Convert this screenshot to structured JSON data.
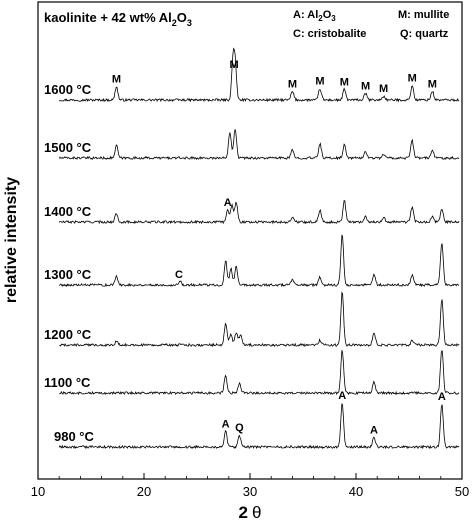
{
  "chart_data": {
    "type": "line",
    "title": "kaolinite + 42 wt% Al",
    "title_sub": "2",
    "title_mid": "O",
    "title_sub2": "3",
    "legend": [
      {
        "text": "A: Al",
        "sub1": "2",
        "mid": "O",
        "sub2": "3"
      },
      {
        "text": "M: mullite"
      },
      {
        "text": "C: cristobalite"
      },
      {
        "text": "Q: quartz"
      }
    ],
    "xlabel_main": "2",
    "xlabel_symbol": "θ",
    "ylabel": "relative intensity",
    "xlim": [
      10,
      50
    ],
    "xticks": [
      "10",
      "20",
      "30",
      "40",
      "50"
    ],
    "series": [
      {
        "name": "1600 °C",
        "peaks": [
          [
            17.4,
            0.28
          ],
          [
            28.4,
            0.78
          ],
          [
            28.6,
            0.68
          ],
          [
            34.0,
            0.18
          ],
          [
            36.6,
            0.24
          ],
          [
            38.9,
            0.22
          ],
          [
            40.9,
            0.14
          ],
          [
            42.6,
            0.08
          ],
          [
            45.3,
            0.3
          ],
          [
            47.2,
            0.18
          ]
        ],
        "labels": [
          {
            "text": "M",
            "x": 17.4
          },
          {
            "text": "M",
            "x": 28.5
          },
          {
            "text": "M",
            "x": 34.0
          },
          {
            "text": "M",
            "x": 36.6
          },
          {
            "text": "M",
            "x": 38.9
          },
          {
            "text": "M",
            "x": 40.9
          },
          {
            "text": "M",
            "x": 42.6
          },
          {
            "text": "M",
            "x": 45.3
          },
          {
            "text": "M",
            "x": 47.2
          }
        ]
      },
      {
        "name": "1500 °C",
        "peaks": [
          [
            17.4,
            0.26
          ],
          [
            28.1,
            0.55
          ],
          [
            28.6,
            0.62
          ],
          [
            34.0,
            0.16
          ],
          [
            36.6,
            0.3
          ],
          [
            38.9,
            0.28
          ],
          [
            40.9,
            0.14
          ],
          [
            42.6,
            0.08
          ],
          [
            45.3,
            0.36
          ],
          [
            47.2,
            0.16
          ]
        ],
        "labels": []
      },
      {
        "name": "1400 °C",
        "peaks": [
          [
            17.4,
            0.18
          ],
          [
            27.9,
            0.25
          ],
          [
            28.3,
            0.35
          ],
          [
            28.7,
            0.42
          ],
          [
            34.0,
            0.1
          ],
          [
            36.6,
            0.26
          ],
          [
            38.9,
            0.45
          ],
          [
            40.9,
            0.12
          ],
          [
            42.6,
            0.1
          ],
          [
            45.3,
            0.32
          ],
          [
            47.2,
            0.1
          ],
          [
            48.1,
            0.28
          ]
        ],
        "labels": [
          {
            "text": "A",
            "x": 27.9
          }
        ]
      },
      {
        "name": "1300 °C",
        "peaks": [
          [
            17.4,
            0.18
          ],
          [
            23.4,
            0.08
          ],
          [
            27.7,
            0.5
          ],
          [
            28.2,
            0.35
          ],
          [
            28.7,
            0.38
          ],
          [
            34.0,
            0.1
          ],
          [
            36.6,
            0.16
          ],
          [
            38.7,
            1.05
          ],
          [
            41.7,
            0.22
          ],
          [
            45.3,
            0.2
          ],
          [
            48.1,
            0.88
          ]
        ],
        "labels": [
          {
            "text": "C",
            "x": 23.3
          }
        ]
      },
      {
        "name": "1200 °C",
        "peaks": [
          [
            17.4,
            0.08
          ],
          [
            27.7,
            0.45
          ],
          [
            28.2,
            0.22
          ],
          [
            28.7,
            0.25
          ],
          [
            29.1,
            0.2
          ],
          [
            36.6,
            0.1
          ],
          [
            38.7,
            1.1
          ],
          [
            41.7,
            0.26
          ],
          [
            45.3,
            0.1
          ],
          [
            48.1,
            0.95
          ]
        ],
        "labels": []
      },
      {
        "name": "1100 °C",
        "peaks": [
          [
            27.7,
            0.35
          ],
          [
            29.0,
            0.2
          ],
          [
            38.7,
            0.9
          ],
          [
            41.7,
            0.22
          ],
          [
            48.1,
            0.92
          ]
        ],
        "labels": []
      },
      {
        "name": "980 °C",
        "peaks": [
          [
            27.7,
            0.32
          ],
          [
            29.0,
            0.25
          ],
          [
            38.7,
            0.92
          ],
          [
            41.7,
            0.2
          ],
          [
            48.1,
            0.9
          ]
        ],
        "labels": [
          {
            "text": "A",
            "x": 27.7
          },
          {
            "text": "Q",
            "x": 29.0
          },
          {
            "text": "A",
            "x": 38.7
          },
          {
            "text": "A",
            "x": 41.7
          },
          {
            "text": "A",
            "x": 48.1
          }
        ]
      }
    ]
  }
}
